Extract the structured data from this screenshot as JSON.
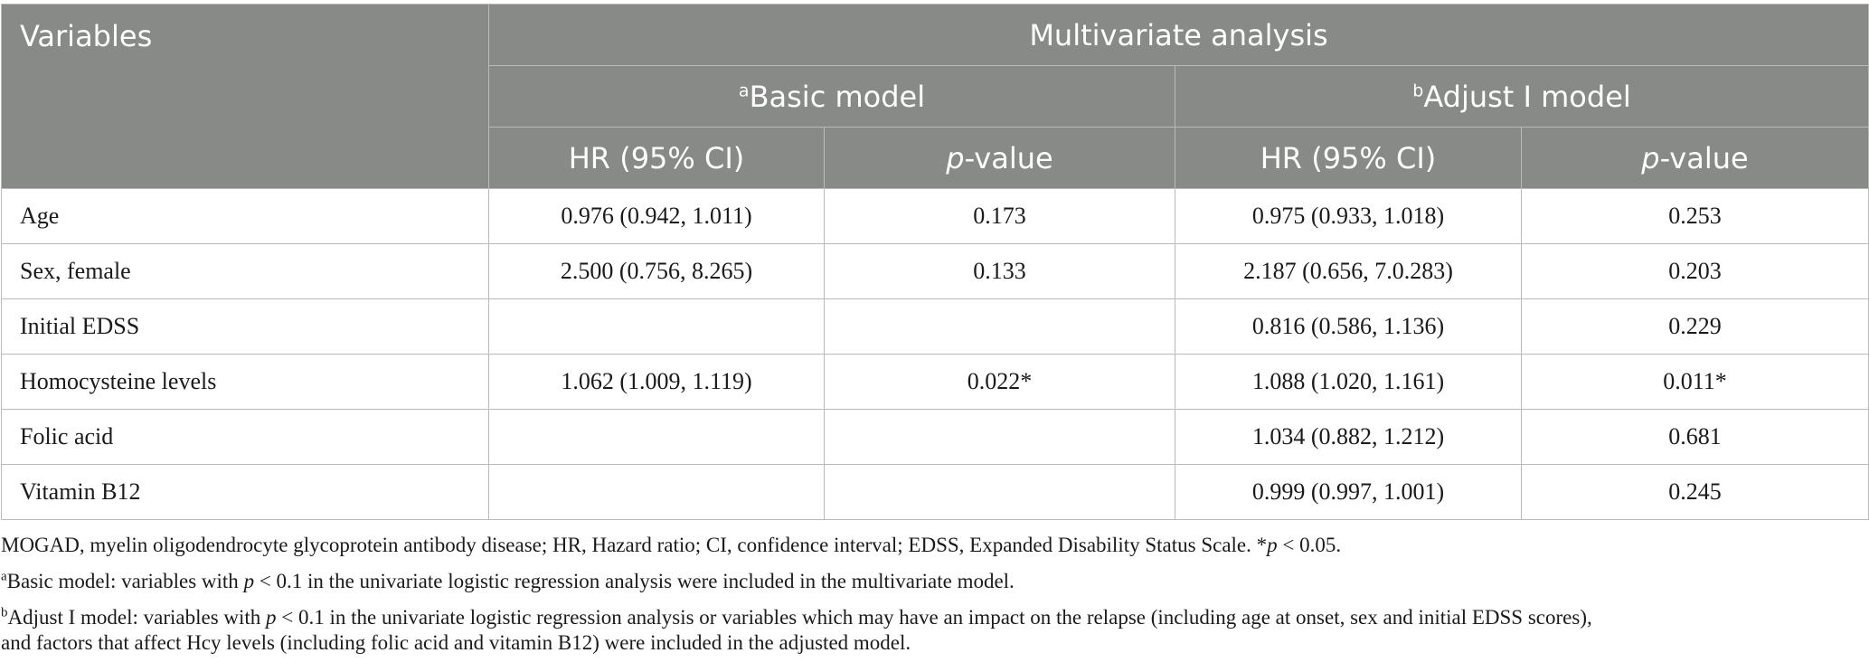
{
  "header": {
    "variables": "Variables",
    "multivariate": "Multivariate analysis",
    "basic_sup": "a",
    "basic_label": "Basic model",
    "adjust_sup": "b",
    "adjust_label": "Adjust I model",
    "hr_label": "HR (95% CI)",
    "p_italic": "p",
    "p_rest": "-value"
  },
  "rows": [
    {
      "variable": "Age",
      "basic_hr": "0.976 (0.942, 1.011)",
      "basic_p": "0.173",
      "adjust_hr": "0.975 (0.933, 1.018)",
      "adjust_p": "0.253"
    },
    {
      "variable": "Sex, female",
      "basic_hr": "2.500 (0.756, 8.265)",
      "basic_p": "0.133",
      "adjust_hr": "2.187 (0.656, 7.0.283)",
      "adjust_p": "0.203"
    },
    {
      "variable": "Initial EDSS",
      "basic_hr": "",
      "basic_p": "",
      "adjust_hr": "0.816 (0.586, 1.136)",
      "adjust_p": "0.229"
    },
    {
      "variable": "Homocysteine levels",
      "basic_hr": "1.062 (1.009, 1.119)",
      "basic_p": "0.022*",
      "adjust_hr": "1.088 (1.020, 1.161)",
      "adjust_p": "0.011*"
    },
    {
      "variable": "Folic acid",
      "basic_hr": "",
      "basic_p": "",
      "adjust_hr": "1.034 (0.882, 1.212)",
      "adjust_p": "0.681"
    },
    {
      "variable": "Vitamin B12",
      "basic_hr": "",
      "basic_p": "",
      "adjust_hr": "0.999 (0.997, 1.001)",
      "adjust_p": "0.245"
    }
  ],
  "notes": {
    "abbrev_main": "MOGAD, myelin oligodendrocyte glycoprotein antibody disease; HR, Hazard ratio; CI, confidence interval; EDSS, Expanded Disability Status Scale. *",
    "abbrev_p": "p",
    "abbrev_tail": " < 0.05.",
    "a_sup": "a",
    "a_pre": "Basic model: variables with ",
    "a_p": "p",
    "a_post": " < 0.1 in the univariate logistic regression analysis were included in the multivariate model.",
    "b_sup": "b",
    "b_pre": "Adjust I model: variables with ",
    "b_p": "p",
    "b_post_line1": " < 0.1 in the univariate logistic regression analysis or variables which may have an impact on the relapse (including age at onset, sex and initial EDSS scores),",
    "b_line2": "and factors that affect Hcy levels (including folic acid and vitamin B12) were included in the adjusted model."
  }
}
